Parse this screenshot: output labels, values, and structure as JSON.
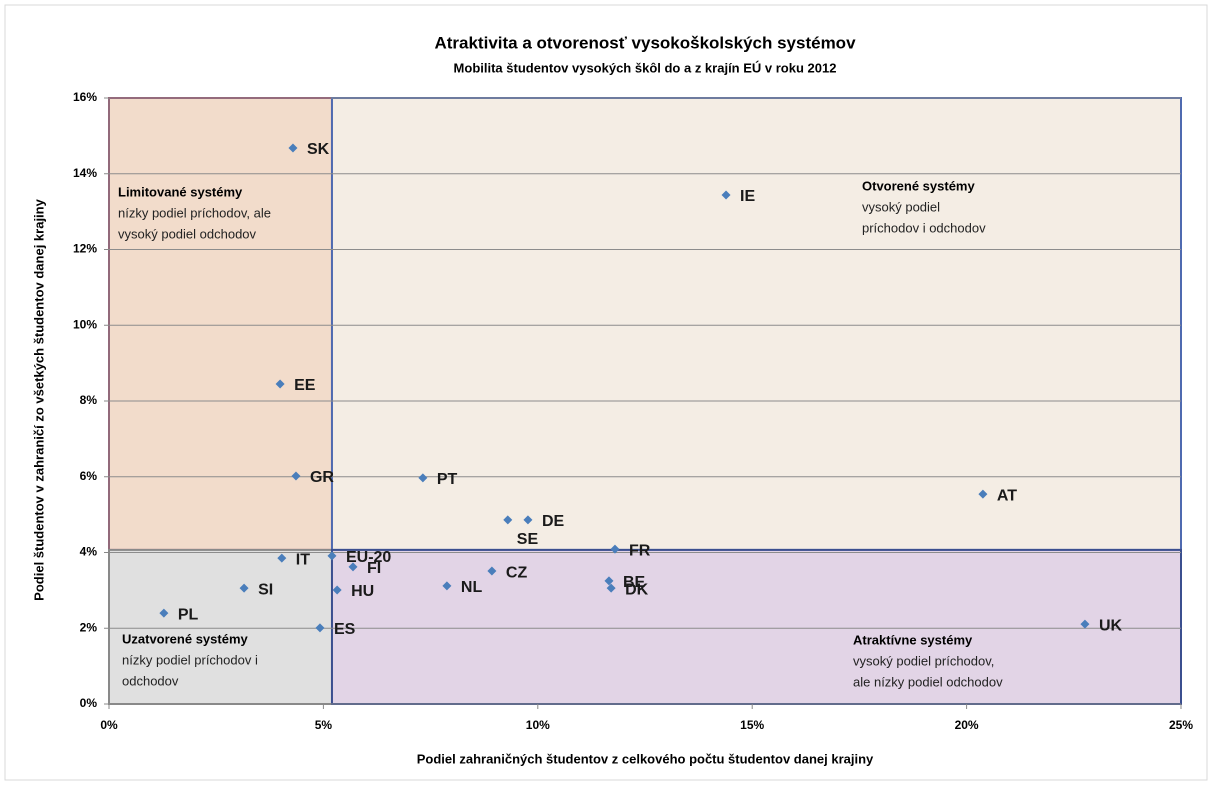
{
  "chart_data": {
    "type": "scatter",
    "title": "Atraktivita a otvorenosť vysokoškolských systémov",
    "subtitle": "Mobilita študentov vysokých škôl do a z krajín EÚ v roku 2012",
    "x_label": "Podiel zahraničných študentov z celkového počtu študentov danej krajiny",
    "y_label": "Podiel študentov v zahraničí zo všetkých študentov danej krajiny",
    "labels": [
      "SK",
      "IE",
      "EE",
      "GR",
      "PT",
      "AT",
      "SE",
      "DE",
      "FR",
      "IT",
      "EU-20",
      "FI",
      "SI",
      "HU",
      "NL",
      "CZ",
      "BE",
      "DK",
      "PL",
      "ES",
      "UK"
    ],
    "x": [
      4.29,
      14.39,
      3.99,
      4.36,
      7.32,
      20.38,
      9.3,
      9.77,
      11.8,
      4.03,
      5.2,
      5.69,
      3.15,
      5.32,
      7.88,
      8.93,
      11.66,
      11.71,
      1.28,
      4.92,
      22.76
    ],
    "series": [
      {
        "color": "#4a7ebb",
        "values": [
          14.68,
          13.44,
          8.45,
          6.02,
          5.97,
          5.54,
          4.86,
          4.86,
          4.09,
          3.85,
          3.91,
          3.62,
          3.06,
          3.01,
          3.12,
          3.51,
          3.25,
          3.06,
          2.4,
          2.01,
          2.11
        ]
      }
    ],
    "xlim": [
      0,
      25
    ],
    "xticks": [
      {
        "value": 0,
        "label": "0%"
      },
      {
        "value": 5,
        "label": "5%"
      },
      {
        "value": 10,
        "label": "10%"
      },
      {
        "value": 15,
        "label": "15%"
      },
      {
        "value": 20,
        "label": "20%"
      },
      {
        "value": 25,
        "label": "25%"
      }
    ],
    "ylim": [
      0,
      16
    ],
    "yticks": [
      {
        "value": 0,
        "label": "0%"
      },
      {
        "value": 2,
        "label": "2%"
      },
      {
        "value": 4,
        "label": "4%"
      },
      {
        "value": 6,
        "label": "6%"
      },
      {
        "value": 8,
        "label": "8%"
      },
      {
        "value": 10,
        "label": "10%"
      },
      {
        "value": 12,
        "label": "12%"
      },
      {
        "value": 14,
        "label": "14%"
      },
      {
        "value": 16,
        "label": "16%"
      }
    ],
    "grid": true,
    "quadrants": [
      {
        "title": "Limitované systémy",
        "lines": [
          "nízky podiel príchodov, ale",
          "vysoký podiel odchodov"
        ]
      },
      {
        "title": "Otvorené systémy",
        "lines": [
          "vysoký podiel",
          "príchodov i odchodov"
        ]
      },
      {
        "title": "Uzatvorené systémy",
        "lines": [
          "nízky podiel príchodov i",
          "odchodov"
        ]
      },
      {
        "title": "Atraktívne systémy",
        "lines": [
          "vysoký podiel príchodov,",
          "ale nízky podiel odchodov"
        ]
      }
    ]
  }
}
